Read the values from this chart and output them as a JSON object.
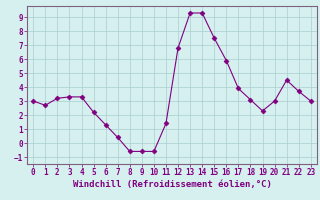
{
  "x": [
    0,
    1,
    2,
    3,
    4,
    5,
    6,
    7,
    8,
    9,
    10,
    11,
    12,
    13,
    14,
    15,
    16,
    17,
    18,
    19,
    20,
    21,
    22,
    23
  ],
  "y": [
    3.0,
    2.7,
    3.2,
    3.3,
    3.3,
    2.2,
    1.3,
    0.4,
    -0.6,
    -0.6,
    -0.6,
    1.4,
    6.8,
    9.3,
    9.3,
    7.5,
    5.9,
    3.9,
    3.1,
    2.3,
    3.0,
    4.5,
    3.7,
    3.0
  ],
  "line_color": "#800080",
  "marker": "D",
  "markersize": 2.5,
  "bg_color": "#d6f0f0",
  "grid_color": "#aacece",
  "xlabel": "Windchill (Refroidissement éolien,°C)",
  "ylim": [
    -1.5,
    9.8
  ],
  "xlim": [
    -0.5,
    23.5
  ],
  "yticks": [
    -1,
    0,
    1,
    2,
    3,
    4,
    5,
    6,
    7,
    8,
    9
  ],
  "xticks": [
    0,
    1,
    2,
    3,
    4,
    5,
    6,
    7,
    8,
    9,
    10,
    11,
    12,
    13,
    14,
    15,
    16,
    17,
    18,
    19,
    20,
    21,
    22,
    23
  ],
  "tick_label_fontsize": 5.5,
  "xlabel_fontsize": 6.5
}
